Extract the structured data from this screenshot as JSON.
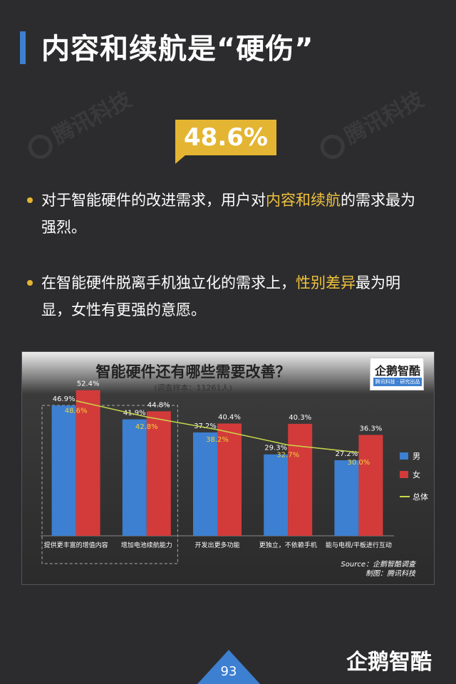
{
  "header": {
    "title": "内容和续航是“硬伤”"
  },
  "watermark": {
    "text": "腾讯科技"
  },
  "stat": {
    "value": "48.6%"
  },
  "bullets": [
    {
      "before": "对于智能硬件的改进需求，用户对",
      "highlight": "内容和续航",
      "after": "的需求最为强烈。"
    },
    {
      "before": "在智能硬件脱离手机独立化的需求上，",
      "highlight": "性别差异",
      "after": "最为明显，女性有更强的意愿。"
    }
  ],
  "chart_data": {
    "type": "bar",
    "title": "智能硬件还有哪些需要改善？",
    "subtitle": "(调查样本：11261人)",
    "categories": [
      "提供更丰富的增值内容",
      "增加电池续航能力",
      "开发出更多功能",
      "更独立，不依赖手机",
      "能与电视/平板进行互动"
    ],
    "series": [
      {
        "name": "男",
        "type": "bar",
        "values": [
          46.9,
          41.9,
          37.2,
          29.3,
          27.2
        ],
        "labels": [
          "46.9%",
          "41.9%",
          "37.2%",
          "29.3%",
          "27.2%"
        ]
      },
      {
        "name": "女",
        "type": "bar",
        "values": [
          52.4,
          44.8,
          40.4,
          40.3,
          36.3
        ],
        "labels": [
          "52.4%",
          "44.8%",
          "40.4%",
          "40.3%",
          "36.3%"
        ]
      },
      {
        "name": "总体",
        "type": "line",
        "values": [
          48.6,
          42.8,
          38.2,
          32.7,
          30.0
        ],
        "labels": [
          "48.6%",
          "42.8%",
          "38.2%",
          "32.7%",
          "30.0%"
        ]
      }
    ],
    "ylim": [
      0,
      60
    ],
    "grid": false,
    "legend": "right",
    "colors": {
      "男": "#3d7fd0",
      "女": "#d33b3b",
      "总体": "#c8d84a",
      "line_label": "#f0d23c"
    },
    "highlight_box_categories": [
      0,
      1
    ]
  },
  "source": {
    "line1": "Source：企鹅智酷调查",
    "line2": "制图：腾讯科技"
  },
  "logo": {
    "name": "企鹅智酷",
    "sub": "腾讯科技 · 研究出品"
  },
  "footer": {
    "page": "93",
    "brand": "企鹅智酷"
  }
}
